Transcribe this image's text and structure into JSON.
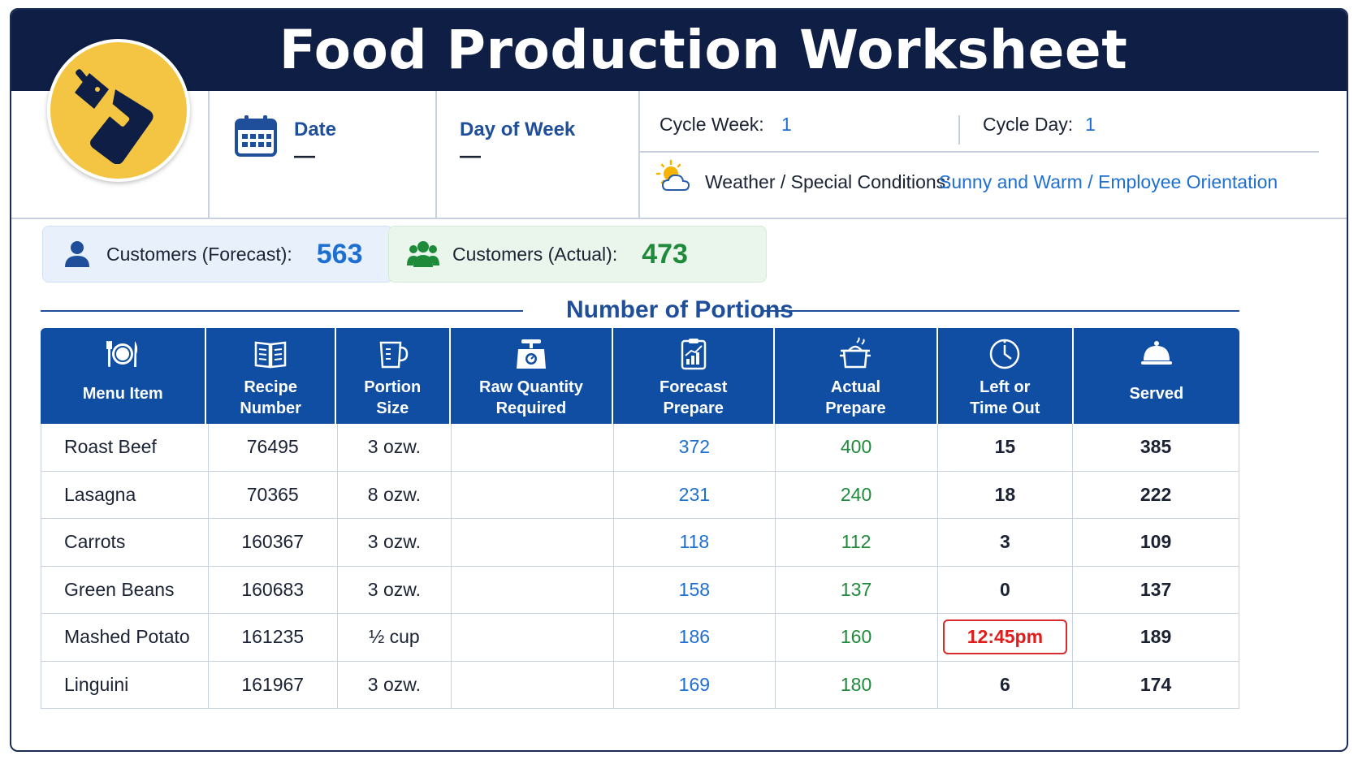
{
  "title": "Food Production Worksheet",
  "logo": {
    "icon": "cleaver-cutting-board-icon",
    "bg_color": "#f4c542"
  },
  "info": {
    "date_label": "Date",
    "date_value": "—",
    "day_label": "Day of Week",
    "day_value": "—",
    "cycle_week_label": "Cycle Week:",
    "cycle_week_value": "1",
    "cycle_day_label": "Cycle Day:",
    "cycle_day_value": "1",
    "weather_label": "Weather / Special Conditions:",
    "weather_value": "Sunny and Warm / Employee Orientation"
  },
  "customers": {
    "forecast_label": "Customers (Forecast):",
    "forecast_value": "563",
    "actual_label": "Customers (Actual):",
    "actual_value": "473"
  },
  "section_title": "Number of Portions",
  "table": {
    "headers": [
      {
        "l1": "Menu Item",
        "l2": "",
        "icon": "plate-utensils-icon"
      },
      {
        "l1": "Recipe",
        "l2": "Number",
        "icon": "recipe-book-icon"
      },
      {
        "l1": "Portion",
        "l2": "Size",
        "icon": "measuring-cup-icon"
      },
      {
        "l1": "Raw Quantity",
        "l2": "Required",
        "icon": "scale-icon"
      },
      {
        "l1": "Forecast",
        "l2": "Prepare",
        "icon": "clipboard-chart-icon"
      },
      {
        "l1": "Actual",
        "l2": "Prepare",
        "icon": "cooking-pot-icon"
      },
      {
        "l1": "Left or",
        "l2": "Time Out",
        "icon": "clock-icon"
      },
      {
        "l1": "Served",
        "l2": "",
        "icon": "serving-cloche-icon"
      }
    ],
    "rows": [
      {
        "item": "Roast Beef",
        "recipe": "76495",
        "portion": "3 ozw.",
        "raw": "",
        "forecast": "372",
        "actual": "400",
        "left": "15",
        "served": "385"
      },
      {
        "item": "Lasagna",
        "recipe": "70365",
        "portion": "8 ozw.",
        "raw": "",
        "forecast": "231",
        "actual": "240",
        "left": "18",
        "served": "222"
      },
      {
        "item": "Carrots",
        "recipe": "160367",
        "portion": "3 ozw.",
        "raw": "",
        "forecast": "118",
        "actual": "112",
        "left": "3",
        "served": "109"
      },
      {
        "item": "Green Beans",
        "recipe": "160683",
        "portion": "3 ozw.",
        "raw": "",
        "forecast": "158",
        "actual": "137",
        "left": "0",
        "served": "137"
      },
      {
        "item": "Mashed Potato",
        "recipe": "161235",
        "portion": "½ cup",
        "raw": "",
        "forecast": "186",
        "actual": "160",
        "left": "12:45pm",
        "served": "189"
      },
      {
        "item": "Linguini",
        "recipe": "161967",
        "portion": "3 ozw.",
        "raw": "",
        "forecast": "169",
        "actual": "180",
        "left": "6",
        "served": "174"
      }
    ]
  },
  "colors": {
    "navy": "#0f1e45",
    "header_blue": "#0f4ea3",
    "accent_blue": "#1f6fd1",
    "green": "#1e8a3a",
    "alert_red": "#e21b1b"
  }
}
